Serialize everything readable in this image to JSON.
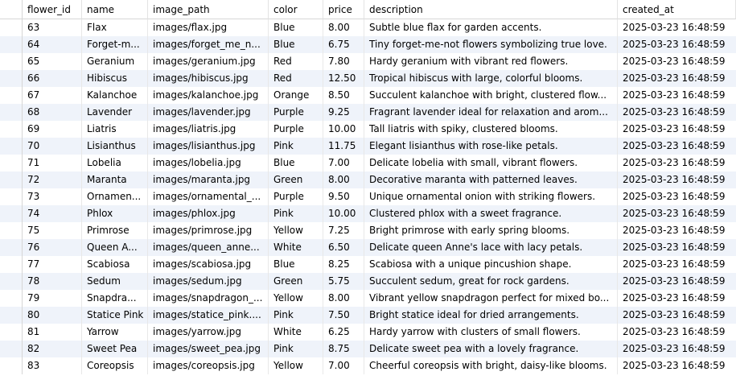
{
  "table": {
    "columns": [
      "flower_id",
      "name",
      "image_path",
      "color",
      "price",
      "description",
      "created_at"
    ],
    "rows": [
      [
        "63",
        "Flax",
        "images/flax.jpg",
        "Blue",
        "8.00",
        "Subtle blue flax for garden accents.",
        "2025-03-23 16:48:59"
      ],
      [
        "64",
        "Forget-m...",
        "images/forget_me_n...",
        "Blue",
        "6.75",
        "Tiny forget-me-not flowers symbolizing true love.",
        "2025-03-23 16:48:59"
      ],
      [
        "65",
        "Geranium",
        "images/geranium.jpg",
        "Red",
        "7.80",
        "Hardy geranium with vibrant red flowers.",
        "2025-03-23 16:48:59"
      ],
      [
        "66",
        "Hibiscus",
        "images/hibiscus.jpg",
        "Red",
        "12.50",
        "Tropical hibiscus with large, colorful blooms.",
        "2025-03-23 16:48:59"
      ],
      [
        "67",
        "Kalanchoe",
        "images/kalanchoe.jpg",
        "Orange",
        "8.50",
        "Succulent kalanchoe with bright, clustered flow...",
        "2025-03-23 16:48:59"
      ],
      [
        "68",
        "Lavender",
        "images/lavender.jpg",
        "Purple",
        "9.25",
        "Fragrant lavender ideal for relaxation and arom...",
        "2025-03-23 16:48:59"
      ],
      [
        "69",
        "Liatris",
        "images/liatris.jpg",
        "Purple",
        "10.00",
        "Tall liatris with spiky, clustered blooms.",
        "2025-03-23 16:48:59"
      ],
      [
        "70",
        "Lisianthus",
        "images/lisianthus.jpg",
        "Pink",
        "11.75",
        "Elegant lisianthus with rose-like petals.",
        "2025-03-23 16:48:59"
      ],
      [
        "71",
        "Lobelia",
        "images/lobelia.jpg",
        "Blue",
        "7.00",
        "Delicate lobelia with small, vibrant flowers.",
        "2025-03-23 16:48:59"
      ],
      [
        "72",
        "Maranta",
        "images/maranta.jpg",
        "Green",
        "8.00",
        "Decorative maranta with patterned leaves.",
        "2025-03-23 16:48:59"
      ],
      [
        "73",
        "Ornamen...",
        "images/ornamental_...",
        "Purple",
        "9.50",
        "Unique ornamental onion with striking flowers.",
        "2025-03-23 16:48:59"
      ],
      [
        "74",
        "Phlox",
        "images/phlox.jpg",
        "Pink",
        "10.00",
        "Clustered phlox with a sweet fragrance.",
        "2025-03-23 16:48:59"
      ],
      [
        "75",
        "Primrose",
        "images/primrose.jpg",
        "Yellow",
        "7.25",
        "Bright primrose with early spring blooms.",
        "2025-03-23 16:48:59"
      ],
      [
        "76",
        "Queen A...",
        "images/queen_anne...",
        "White",
        "6.50",
        "Delicate queen Anne's lace with lacy petals.",
        "2025-03-23 16:48:59"
      ],
      [
        "77",
        "Scabiosa",
        "images/scabiosa.jpg",
        "Blue",
        "8.25",
        "Scabiosa with a unique pincushion shape.",
        "2025-03-23 16:48:59"
      ],
      [
        "78",
        "Sedum",
        "images/sedum.jpg",
        "Green",
        "5.75",
        "Succulent sedum, great for rock gardens.",
        "2025-03-23 16:48:59"
      ],
      [
        "79",
        "Snapdra...",
        "images/snapdragon_...",
        "Yellow",
        "8.00",
        "Vibrant yellow snapdragon perfect for mixed bo...",
        "2025-03-23 16:48:59"
      ],
      [
        "80",
        "Statice Pink",
        "images/statice_pink....",
        "Pink",
        "7.50",
        "Bright statice ideal for dried arrangements.",
        "2025-03-23 16:48:59"
      ],
      [
        "81",
        "Yarrow",
        "images/yarrow.jpg",
        "White",
        "6.25",
        "Hardy yarrow with clusters of small flowers.",
        "2025-03-23 16:48:59"
      ],
      [
        "82",
        "Sweet Pea",
        "images/sweet_pea.jpg",
        "Pink",
        "8.75",
        "Delicate sweet pea with a lovely fragrance.",
        "2025-03-23 16:48:59"
      ],
      [
        "83",
        "Coreopsis",
        "images/coreopsis.jpg",
        "Yellow",
        "7.00",
        "Cheerful coreopsis with bright, daisy-like blooms.",
        "2025-03-23 16:48:59"
      ]
    ]
  }
}
